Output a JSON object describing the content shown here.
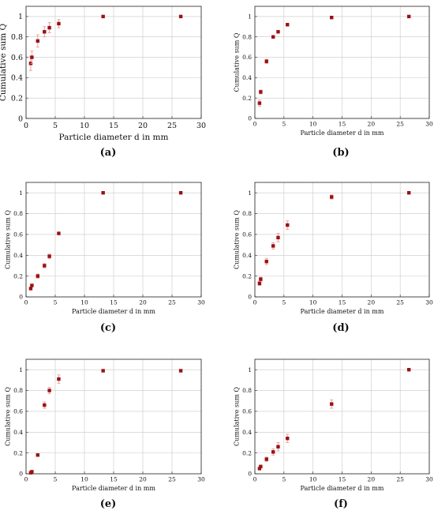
{
  "chart_data": [
    {
      "panel_label": "(a)",
      "type": "scatter",
      "xlabel": "Particle diameter d in mm",
      "ylabel": "Cumulative sum Q",
      "xlim": [
        0,
        30
      ],
      "ylim": [
        0,
        1.1
      ],
      "xticks": [
        0,
        5,
        10,
        15,
        20,
        25,
        30
      ],
      "yticks": [
        0,
        0.2,
        0.4,
        0.6,
        0.8,
        1
      ],
      "grid": true,
      "points": [
        {
          "x": 0.8,
          "y": 0.54,
          "err": 0.07
        },
        {
          "x": 1.0,
          "y": 0.6,
          "err": 0.06
        },
        {
          "x": 2.0,
          "y": 0.76,
          "err": 0.06
        },
        {
          "x": 3.15,
          "y": 0.85,
          "err": 0.05
        },
        {
          "x": 4.0,
          "y": 0.89,
          "err": 0.05
        },
        {
          "x": 5.6,
          "y": 0.93,
          "err": 0.04
        },
        {
          "x": 13.2,
          "y": 1.0,
          "err": 0.0
        },
        {
          "x": 26.5,
          "y": 1.0,
          "err": 0.0
        }
      ]
    },
    {
      "panel_label": "(b)",
      "type": "scatter",
      "xlabel": "Particle diameter d in mm",
      "ylabel": "Cumulative sum Q",
      "xlim": [
        0,
        30
      ],
      "ylim": [
        0,
        1.1
      ],
      "xticks": [
        0,
        5,
        10,
        15,
        20,
        25,
        30
      ],
      "yticks": [
        0,
        0.2,
        0.4,
        0.6,
        0.8,
        1
      ],
      "grid": true,
      "points": [
        {
          "x": 0.8,
          "y": 0.15,
          "err": 0.03
        },
        {
          "x": 1.0,
          "y": 0.26,
          "err": 0.02
        },
        {
          "x": 2.0,
          "y": 0.56,
          "err": 0.02
        },
        {
          "x": 3.15,
          "y": 0.8,
          "err": 0.01
        },
        {
          "x": 4.0,
          "y": 0.85,
          "err": 0.01
        },
        {
          "x": 5.6,
          "y": 0.92,
          "err": 0.01
        },
        {
          "x": 13.2,
          "y": 0.99,
          "err": 0.0
        },
        {
          "x": 26.5,
          "y": 1.0,
          "err": 0.0
        }
      ]
    },
    {
      "panel_label": "(c)",
      "type": "scatter",
      "xlabel": "Particle diameter d in mm",
      "ylabel": "Cumulative sum Q",
      "xlim": [
        0,
        30
      ],
      "ylim": [
        0,
        1.1
      ],
      "xticks": [
        0,
        5,
        10,
        15,
        20,
        25,
        30
      ],
      "yticks": [
        0,
        0.2,
        0.4,
        0.6,
        0.8,
        1
      ],
      "grid": true,
      "points": [
        {
          "x": 0.8,
          "y": 0.08,
          "err": 0.01
        },
        {
          "x": 1.0,
          "y": 0.11,
          "err": 0.01
        },
        {
          "x": 2.0,
          "y": 0.2,
          "err": 0.02
        },
        {
          "x": 3.15,
          "y": 0.3,
          "err": 0.02
        },
        {
          "x": 4.0,
          "y": 0.39,
          "err": 0.02
        },
        {
          "x": 5.6,
          "y": 0.61,
          "err": 0.01
        },
        {
          "x": 13.2,
          "y": 1.0,
          "err": 0.0
        },
        {
          "x": 26.5,
          "y": 1.0,
          "err": 0.0
        }
      ]
    },
    {
      "panel_label": "(d)",
      "type": "scatter",
      "xlabel": "Particle diameter d in mm",
      "ylabel": "Cumulative sum Q",
      "xlim": [
        0,
        30
      ],
      "ylim": [
        0,
        1.1
      ],
      "xticks": [
        0,
        5,
        10,
        15,
        20,
        25,
        30
      ],
      "yticks": [
        0,
        0.2,
        0.4,
        0.6,
        0.8,
        1
      ],
      "grid": true,
      "points": [
        {
          "x": 0.8,
          "y": 0.13,
          "err": 0.02
        },
        {
          "x": 1.0,
          "y": 0.17,
          "err": 0.02
        },
        {
          "x": 2.0,
          "y": 0.34,
          "err": 0.03
        },
        {
          "x": 3.15,
          "y": 0.49,
          "err": 0.03
        },
        {
          "x": 4.0,
          "y": 0.57,
          "err": 0.04
        },
        {
          "x": 5.6,
          "y": 0.69,
          "err": 0.04
        },
        {
          "x": 13.2,
          "y": 0.96,
          "err": 0.02
        },
        {
          "x": 26.5,
          "y": 1.0,
          "err": 0.0
        }
      ]
    },
    {
      "panel_label": "(e)",
      "type": "scatter",
      "xlabel": "Particle diameter d in mm",
      "ylabel": "Cumulative sum Q",
      "xlim": [
        0,
        30
      ],
      "ylim": [
        0,
        1.1
      ],
      "xticks": [
        0,
        5,
        10,
        15,
        20,
        25,
        30
      ],
      "yticks": [
        0,
        0.2,
        0.4,
        0.6,
        0.8,
        1
      ],
      "grid": true,
      "points": [
        {
          "x": 0.8,
          "y": 0.01,
          "err": 0.005
        },
        {
          "x": 1.0,
          "y": 0.02,
          "err": 0.005
        },
        {
          "x": 2.0,
          "y": 0.18,
          "err": 0.01
        },
        {
          "x": 3.15,
          "y": 0.66,
          "err": 0.03
        },
        {
          "x": 4.0,
          "y": 0.8,
          "err": 0.03
        },
        {
          "x": 5.6,
          "y": 0.91,
          "err": 0.04
        },
        {
          "x": 13.2,
          "y": 0.99,
          "err": 0.0
        },
        {
          "x": 26.5,
          "y": 0.99,
          "err": 0.0
        }
      ]
    },
    {
      "panel_label": "(f)",
      "type": "scatter",
      "xlabel": "Particle diameter d in mm",
      "ylabel": "Cumulative sum Q",
      "xlim": [
        0,
        30
      ],
      "ylim": [
        0,
        1.1
      ],
      "xticks": [
        0,
        5,
        10,
        15,
        20,
        25,
        30
      ],
      "yticks": [
        0,
        0.2,
        0.4,
        0.6,
        0.8,
        1
      ],
      "grid": true,
      "points": [
        {
          "x": 0.8,
          "y": 0.05,
          "err": 0.01
        },
        {
          "x": 1.0,
          "y": 0.07,
          "err": 0.01
        },
        {
          "x": 2.0,
          "y": 0.14,
          "err": 0.02
        },
        {
          "x": 3.15,
          "y": 0.21,
          "err": 0.03
        },
        {
          "x": 4.0,
          "y": 0.26,
          "err": 0.04
        },
        {
          "x": 5.6,
          "y": 0.34,
          "err": 0.04
        },
        {
          "x": 13.2,
          "y": 0.67,
          "err": 0.04
        },
        {
          "x": 26.5,
          "y": 1.0,
          "err": 0.0
        }
      ]
    }
  ],
  "colors": {
    "marker": "#9b1111",
    "error_bar": "#e89a9a",
    "grid": "#c8c8c8"
  }
}
